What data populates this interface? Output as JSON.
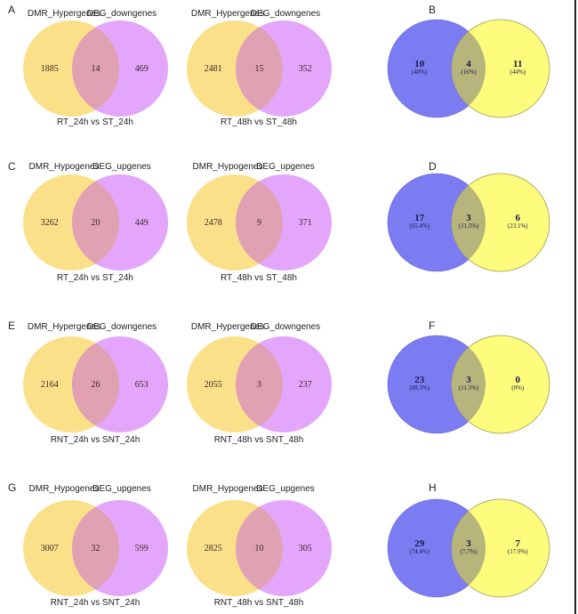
{
  "colors": {
    "left_set": "#fbe08a",
    "right_set": "#e3a6fb",
    "overlap": "#e0a1b3",
    "venn_left": "#7b7bf2",
    "venn_right": "#fdfc7c",
    "venn_overlap": "#b7b47c",
    "venn_stroke": "#9d9a55"
  },
  "chart_data": [
    {
      "panel": "A",
      "type": "venn",
      "position": "row1-left",
      "set_labels": [
        "DMR_Hypergenes",
        "DEG_downgenes"
      ],
      "values": {
        "left_only": "1885",
        "overlap": "14",
        "right_only": "469"
      },
      "caption": "RT_24h vs ST_24h"
    },
    {
      "panel": "",
      "type": "venn",
      "position": "row1-middle",
      "set_labels": [
        "DMR_Hypergenes",
        "DEG_downgenes"
      ],
      "values": {
        "left_only": "2481",
        "overlap": "15",
        "right_only": "352"
      },
      "caption": "RT_48h vs ST_48h"
    },
    {
      "panel": "B",
      "type": "venn",
      "position": "row1-right",
      "values": {
        "left_only": "10",
        "overlap": "4",
        "right_only": "11"
      },
      "percents": {
        "left_only": "(40%)",
        "overlap": "(16%)",
        "right_only": "(44%)"
      }
    },
    {
      "panel": "C",
      "type": "venn",
      "position": "row2-left",
      "set_labels": [
        "DMR_Hypogenes",
        "DEG_upgenes"
      ],
      "values": {
        "left_only": "3262",
        "overlap": "20",
        "right_only": "449"
      },
      "caption": "RT_24h vs ST_24h"
    },
    {
      "panel": "",
      "type": "venn",
      "position": "row2-middle",
      "set_labels": [
        "DMR_Hypogenes",
        "DEG_upgenes"
      ],
      "values": {
        "left_only": "2478",
        "overlap": "9",
        "right_only": "371"
      },
      "caption": "RT_48h vs ST_48h"
    },
    {
      "panel": "D",
      "type": "venn",
      "position": "row2-right",
      "values": {
        "left_only": "17",
        "overlap": "3",
        "right_only": "6"
      },
      "percents": {
        "left_only": "(65.4%)",
        "overlap": "(11.5%)",
        "right_only": "(23.1%)"
      }
    },
    {
      "panel": "E",
      "type": "venn",
      "position": "row3-left",
      "set_labels": [
        "DMR_Hypergenes",
        "DEG_downgenes"
      ],
      "values": {
        "left_only": "2164",
        "overlap": "26",
        "right_only": "653"
      },
      "caption": "RNT_24h vs SNT_24h"
    },
    {
      "panel": "",
      "type": "venn",
      "position": "row3-middle",
      "set_labels": [
        "DMR_Hypergenes",
        "DEG_downgenes"
      ],
      "values": {
        "left_only": "2055",
        "overlap": "3",
        "right_only": "237"
      },
      "caption": "RNT_48h vs SNT_48h"
    },
    {
      "panel": "F",
      "type": "venn",
      "position": "row3-right",
      "values": {
        "left_only": "23",
        "overlap": "3",
        "right_only": "0"
      },
      "percents": {
        "left_only": "(88.5%)",
        "overlap": "(11.5%)",
        "right_only": "(0%)"
      }
    },
    {
      "panel": "G",
      "type": "venn",
      "position": "row4-left",
      "set_labels": [
        "DMR_Hypogenes",
        "DEG_upgenes"
      ],
      "values": {
        "left_only": "3007",
        "overlap": "32",
        "right_only": "599"
      },
      "caption": "RNT_24h vs SNT_24h"
    },
    {
      "panel": "",
      "type": "venn",
      "position": "row4-middle",
      "set_labels": [
        "DMR_Hypogenes",
        "DEG_upgenes"
      ],
      "values": {
        "left_only": "2825",
        "overlap": "10",
        "right_only": "305"
      },
      "caption": "RNT_48h vs SNT_48h"
    },
    {
      "panel": "H",
      "type": "venn",
      "position": "row4-right",
      "values": {
        "left_only": "29",
        "overlap": "3",
        "right_only": "7"
      },
      "percents": {
        "left_only": "(74.4%)",
        "overlap": "(7.7%)",
        "right_only": "(17.9%)"
      }
    }
  ]
}
